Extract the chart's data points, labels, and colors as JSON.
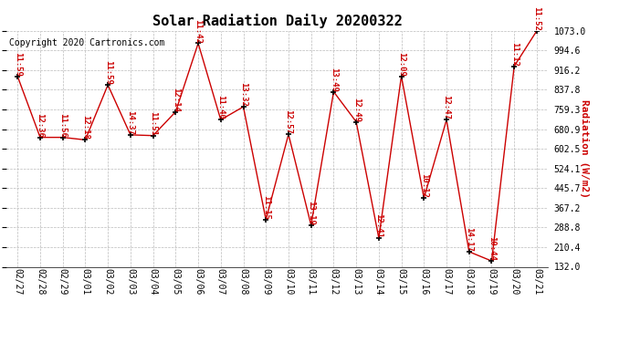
{
  "title": "Solar Radiation Daily 20200322",
  "copyright": "Copyright 2020 Cartronics.com",
  "ylabel_right": "Radiation (W/m2)",
  "dates": [
    "02/27",
    "02/28",
    "02/29",
    "03/01",
    "03/02",
    "03/03",
    "03/04",
    "03/05",
    "03/06",
    "03/07",
    "03/08",
    "03/09",
    "03/10",
    "03/11",
    "03/12",
    "03/13",
    "03/14",
    "03/15",
    "03/16",
    "03/17",
    "03/18",
    "03/19",
    "03/20",
    "03/21"
  ],
  "values": [
    891,
    648,
    648,
    638,
    857,
    658,
    655,
    750,
    1023,
    718,
    770,
    320,
    660,
    298,
    830,
    710,
    247,
    892,
    406,
    718,
    192,
    155,
    932,
    1073
  ],
  "time_labels": [
    "11:59",
    "12:36",
    "11:56",
    "12:18",
    "11:59",
    "14:37",
    "11:51",
    "12:14",
    "11:42",
    "11:40",
    "13:32",
    "11:15",
    "12:57",
    "13:19",
    "13:49",
    "12:49",
    "12:41",
    "12:09",
    "10:12",
    "12:47",
    "14:17",
    "10:44",
    "11:12",
    "11:52"
  ],
  "ylim_min": 132.0,
  "ylim_max": 1073.0,
  "ytick_values": [
    132.0,
    210.4,
    288.8,
    367.2,
    445.7,
    524.1,
    602.5,
    680.9,
    759.3,
    837.8,
    916.2,
    994.6,
    1073.0
  ],
  "ytick_labels": [
    "132.0",
    "210.4",
    "288.8",
    "367.2",
    "445.7",
    "524.1",
    "602.5",
    "680.9",
    "759.3",
    "837.8",
    "916.2",
    "994.6",
    "1073.0"
  ],
  "line_color": "#cc0000",
  "marker_color": "#000000",
  "bg_color": "#ffffff",
  "grid_color": "#bbbbbb",
  "title_fontsize": 11,
  "copyright_fontsize": 7,
  "tick_fontsize": 7,
  "time_label_fontsize": 6.5
}
